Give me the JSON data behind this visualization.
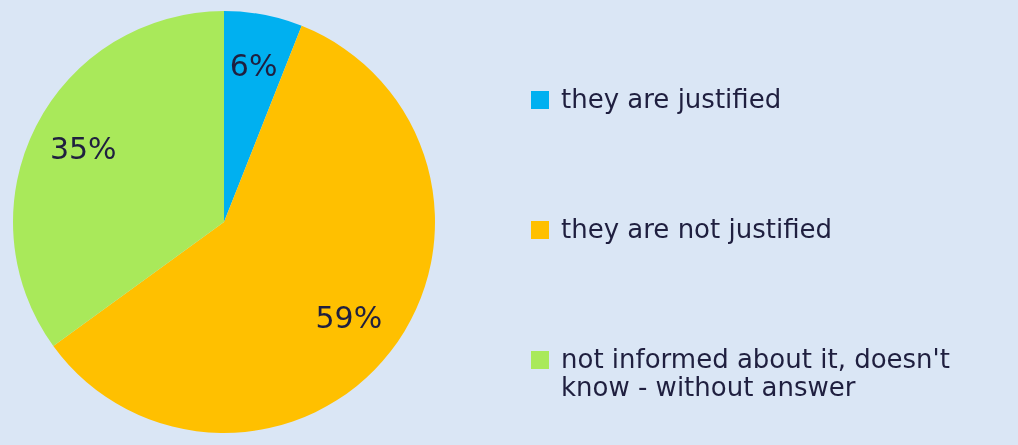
{
  "chart_data": {
    "type": "pie",
    "categories": [
      "they are justified",
      "they are not justified",
      "not informed about it, doesn't know - without answer"
    ],
    "values": [
      6,
      59,
      35
    ],
    "colors": [
      "#00b0f0",
      "#ffc000",
      "#a9e95a"
    ],
    "value_labels": [
      "6%",
      "59%",
      "35%"
    ],
    "legend": "right"
  }
}
